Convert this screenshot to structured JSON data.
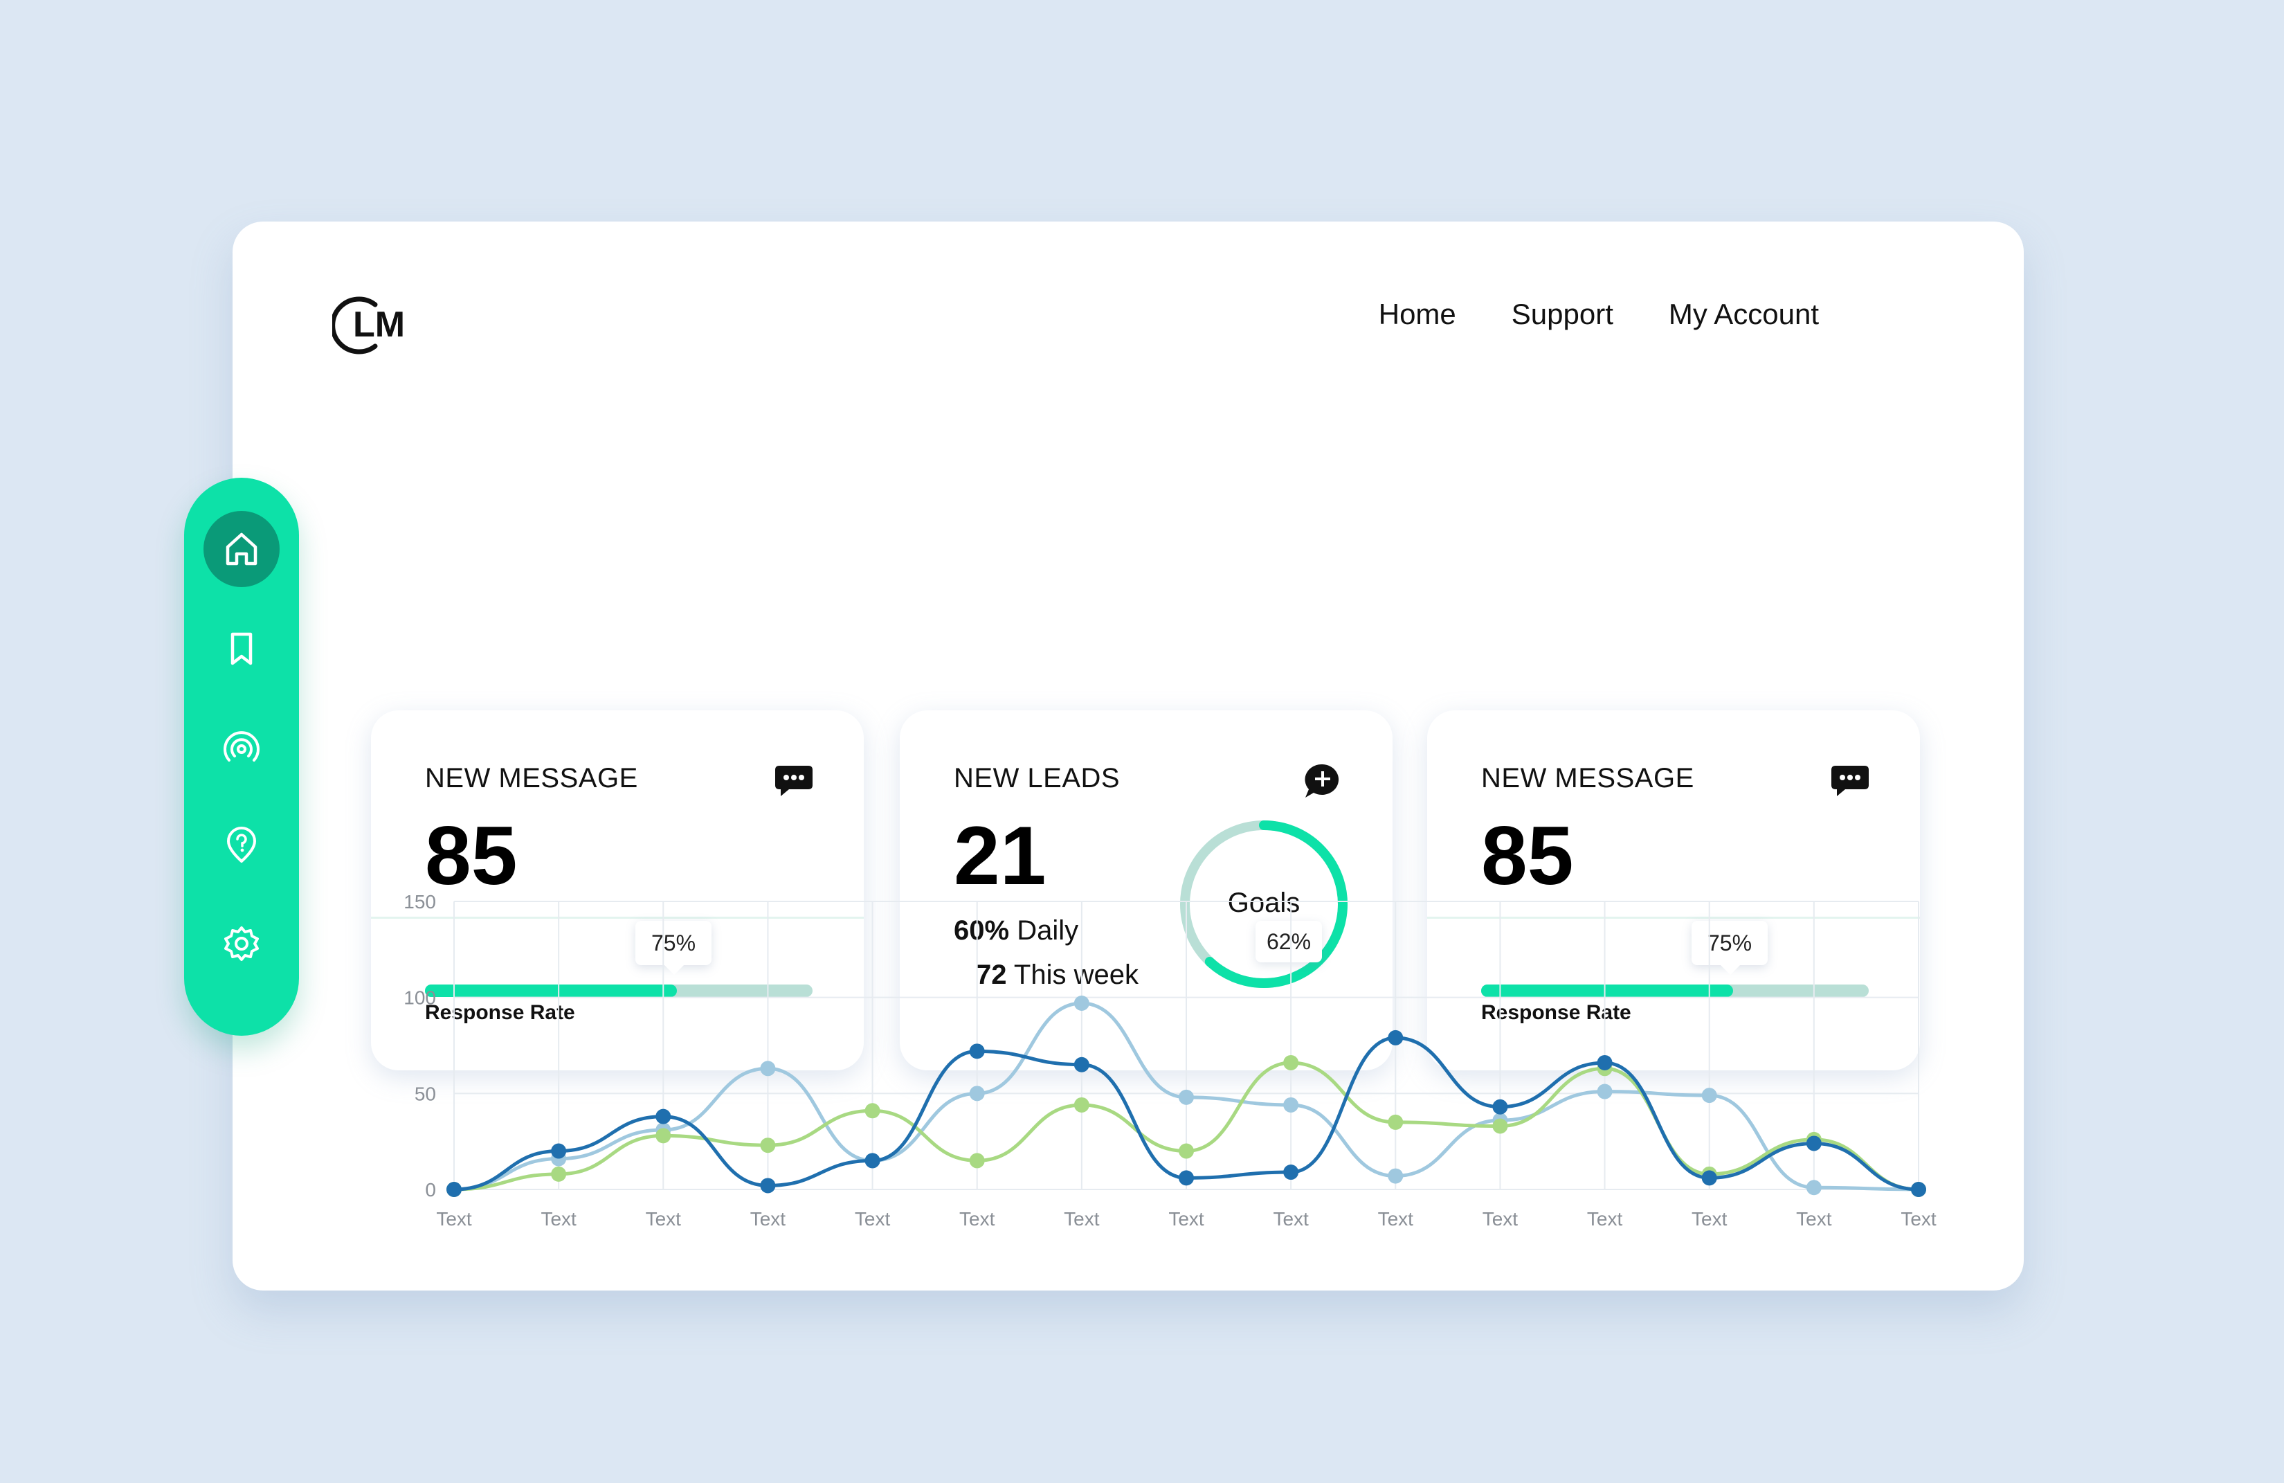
{
  "logo": {
    "text": "LM"
  },
  "nav": {
    "items": [
      "Home",
      "Support",
      "My Account"
    ]
  },
  "sidebar": {
    "items": [
      {
        "icon": "home-icon",
        "active": true
      },
      {
        "icon": "bookmark-icon",
        "active": false
      },
      {
        "icon": "broadcast-icon",
        "active": false
      },
      {
        "icon": "help-pin-icon",
        "active": false
      },
      {
        "icon": "settings-gear-icon",
        "active": false
      }
    ]
  },
  "cards": {
    "card1": {
      "title": "NEW MESSAGE",
      "value": "85",
      "bubble": "75%",
      "rate": 0.65,
      "bar_label": "Response Rate",
      "icon": "chat-bubble-icon"
    },
    "card2": {
      "title": "NEW LEADS",
      "value": "21",
      "daily_value": "60%",
      "daily_text": "Daily",
      "week_value": "72",
      "week_text": "This week",
      "goal_label": "Goals",
      "goal_percent": "62%",
      "goal_fraction": 0.62,
      "icon": "add-chat-icon"
    },
    "card3": {
      "title": "NEW MESSAGE",
      "value": "85",
      "bubble": "75%",
      "rate": 0.65,
      "bar_label": "Response Rate",
      "icon": "chat-bubble-icon"
    }
  },
  "colors": {
    "accent": "#0de1a8",
    "accent_dark": "#0a9a78",
    "series_dark_blue": "#1f6fae",
    "series_light_blue": "#9fc8df",
    "series_green": "#a8d982"
  },
  "chart_data": {
    "type": "line",
    "categories": [
      "Text",
      "Text",
      "Text",
      "Text",
      "Text",
      "Text",
      "Text",
      "Text",
      "Text",
      "Text",
      "Text",
      "Text",
      "Text",
      "Text",
      "Text"
    ],
    "ylim": [
      0,
      150
    ],
    "yticks": [
      0,
      50,
      100,
      150
    ],
    "grid": true,
    "series": [
      {
        "color": "#1f6fae",
        "values": [
          0,
          20,
          38,
          2,
          15,
          72,
          65,
          6,
          9,
          79,
          43,
          66,
          6,
          24,
          0
        ]
      },
      {
        "color": "#9fc8df",
        "values": [
          0,
          16,
          31,
          63,
          15,
          50,
          97,
          48,
          44,
          7,
          36,
          51,
          49,
          1,
          0
        ]
      },
      {
        "color": "#a8d982",
        "values": [
          0,
          8,
          28,
          23,
          41,
          15,
          44,
          20,
          66,
          35,
          33,
          63,
          8,
          26,
          0
        ]
      }
    ]
  }
}
